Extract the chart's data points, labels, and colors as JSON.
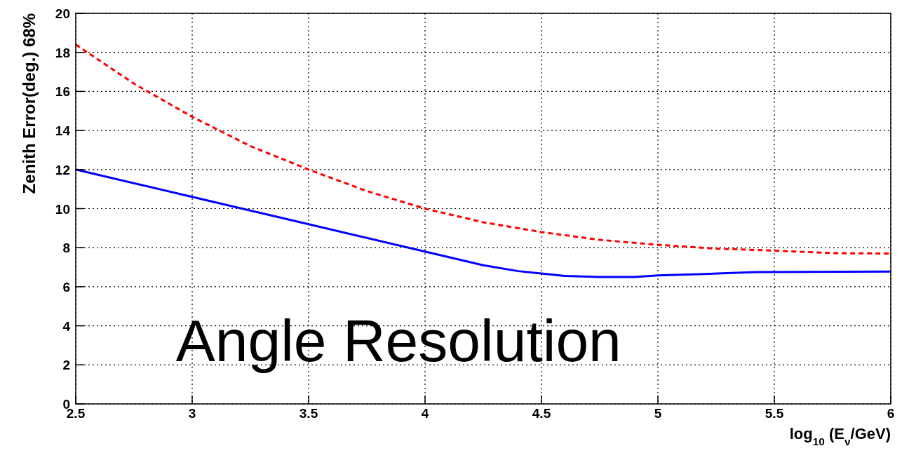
{
  "chart_data": {
    "type": "line",
    "xlabel": "log$_{10}$ (E$_{ν}$/GeV)",
    "ylabel": "Zenith Error(deg.) 68%",
    "annotations": [
      "Angle Resolution"
    ],
    "xlim": [
      2.5,
      6
    ],
    "xticks": [
      2.5,
      3,
      3.5,
      4,
      4.5,
      5,
      5.5,
      6
    ],
    "ylim": [
      0,
      20
    ],
    "yticks": [
      0,
      2,
      4,
      6,
      8,
      10,
      12,
      14,
      16,
      18,
      20
    ],
    "grid": true,
    "marker": "none",
    "series": [
      {
        "color": "#ff0000",
        "line_style": "dashed",
        "x": [
          2.5,
          2.75,
          3,
          3.25,
          3.5,
          3.75,
          4,
          4.25,
          4.5,
          4.75,
          5,
          5.25,
          5.5,
          5.75,
          6
        ],
        "values": [
          18.4,
          16.4,
          14.7,
          13.2,
          12.0,
          10.9,
          10.0,
          9.3,
          8.8,
          8.4,
          8.15,
          7.95,
          7.85,
          7.72,
          7.7
        ]
      },
      {
        "color": "#0000ff",
        "line_style": "solid",
        "x": [
          2.5,
          3,
          3.5,
          4,
          4.25,
          4.4,
          4.6,
          4.75,
          4.9,
          5,
          5.2,
          5.42,
          6
        ],
        "values": [
          12.0,
          10.6,
          9.2,
          7.8,
          7.1,
          6.8,
          6.55,
          6.5,
          6.5,
          6.58,
          6.65,
          6.75,
          6.78
        ]
      }
    ]
  }
}
